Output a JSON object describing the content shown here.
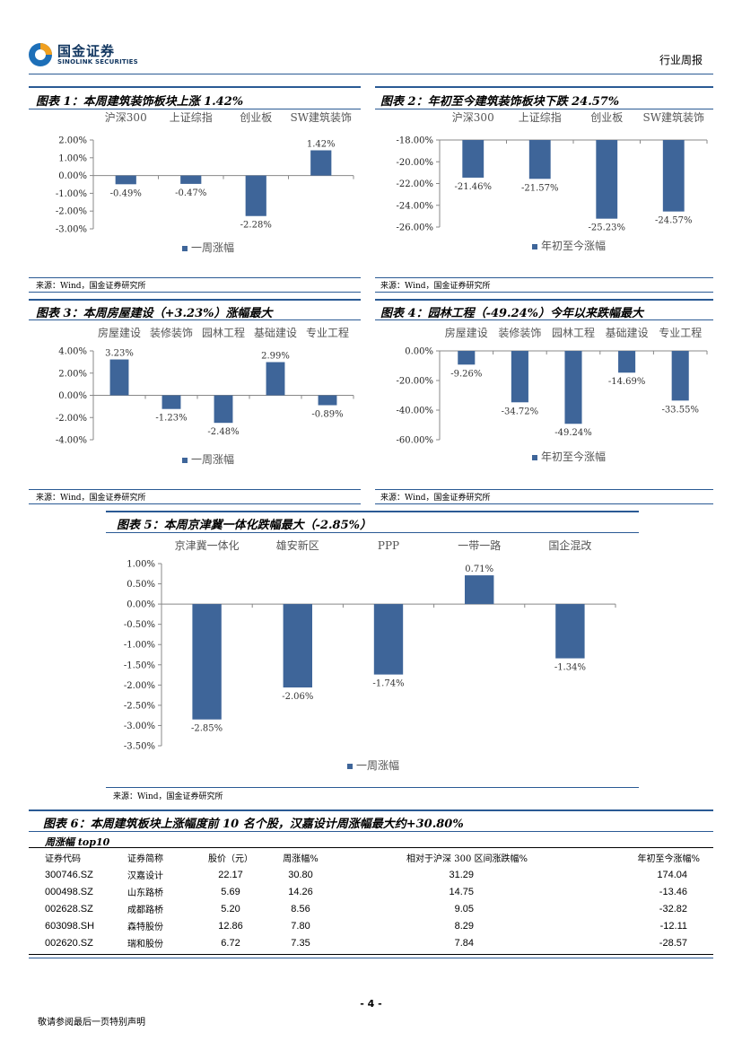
{
  "header": {
    "logo_cn": "国金证券",
    "logo_en": "SINOLINK SECURITIES",
    "doc_type": "行业周报"
  },
  "figures": [
    {
      "title": "图表 1：本周建筑装饰板块上涨 1.42%",
      "source": "来源：Wind，国金证券研究所",
      "chart_data": {
        "type": "bar",
        "categories": [
          "沪深300",
          "上证综指",
          "创业板",
          "SW建筑装饰"
        ],
        "series": [
          {
            "name": "一周涨幅",
            "values": [
              -0.49,
              -0.47,
              -2.28,
              1.42
            ]
          }
        ],
        "value_labels": [
          "-0.49%",
          "-0.47%",
          "-2.28%",
          "1.42%"
        ],
        "yticks": [
          "2.00%",
          "1.00%",
          "0.00%",
          "-1.00%",
          "-2.00%",
          "-3.00%"
        ],
        "ylim": [
          -3,
          2
        ],
        "legend": "bottom"
      }
    },
    {
      "title": "图表 2：年初至今建筑装饰板块下跌 24.57%",
      "source": "来源：Wind，国金证券研究所",
      "chart_data": {
        "type": "bar",
        "categories": [
          "沪深300",
          "上证综指",
          "创业板",
          "SW建筑装饰"
        ],
        "series": [
          {
            "name": "年初至今涨幅",
            "values": [
              -21.46,
              -21.57,
              -25.23,
              -24.57
            ]
          }
        ],
        "value_labels": [
          "-21.46%",
          "-21.57%",
          "-25.23%",
          "-24.57%"
        ],
        "yticks": [
          "-18.00%",
          "-20.00%",
          "-22.00%",
          "-24.00%",
          "-26.00%"
        ],
        "ylim": [
          -26,
          -18
        ],
        "legend": "bottom"
      }
    },
    {
      "title": "图表 3：本周房屋建设（+3.23%）涨幅最大",
      "source": "来源：Wind，国金证券研究所",
      "chart_data": {
        "type": "bar",
        "categories": [
          "房屋建设",
          "装修装饰",
          "园林工程",
          "基础建设",
          "专业工程"
        ],
        "series": [
          {
            "name": "一周涨幅",
            "values": [
              3.23,
              -1.23,
              -2.48,
              2.99,
              -0.89
            ]
          }
        ],
        "value_labels": [
          "3.23%",
          "-1.23%",
          "-2.48%",
          "2.99%",
          "-0.89%"
        ],
        "yticks": [
          "4.00%",
          "2.00%",
          "0.00%",
          "-2.00%",
          "-4.00%"
        ],
        "ylim": [
          -4,
          4
        ],
        "legend": "bottom"
      }
    },
    {
      "title": "图表 4：园林工程（-49.24%）今年以来跌幅最大",
      "source": "来源：Wind，国金证券研究所",
      "chart_data": {
        "type": "bar",
        "categories": [
          "房屋建设",
          "装修装饰",
          "园林工程",
          "基础建设",
          "专业工程"
        ],
        "series": [
          {
            "name": "年初至今涨幅",
            "values": [
              -9.26,
              -34.72,
              -49.24,
              -14.69,
              -33.55
            ]
          }
        ],
        "value_labels": [
          "-9.26%",
          "-34.72%",
          "-49.24%",
          "-14.69%",
          "-33.55%"
        ],
        "yticks": [
          "0.00%",
          "-20.00%",
          "-40.00%",
          "-60.00%"
        ],
        "ylim": [
          -60,
          0
        ],
        "legend": "bottom"
      }
    },
    {
      "title": "图表 5：本周京津冀一体化跌幅最大（-2.85%）",
      "source": "来源：Wind，国金证券研究所",
      "chart_data": {
        "type": "bar",
        "categories": [
          "京津冀一体化",
          "雄安新区",
          "PPP",
          "一带一路",
          "国企混改"
        ],
        "series": [
          {
            "name": "一周涨幅",
            "values": [
              -2.85,
              -2.06,
              -1.74,
              0.71,
              -1.34
            ]
          }
        ],
        "value_labels": [
          "-2.85%",
          "-2.06%",
          "-1.74%",
          "0.71%",
          "-1.34%"
        ],
        "yticks": [
          "1.00%",
          "0.50%",
          "0.00%",
          "-0.50%",
          "-1.00%",
          "-1.50%",
          "-2.00%",
          "-2.50%",
          "-3.00%",
          "-3.50%"
        ],
        "ylim": [
          -3.5,
          1
        ],
        "legend": "bottom"
      }
    }
  ],
  "table6": {
    "title": "图表 6：本周建筑板块上涨幅度前 10 名个股，汉嘉设计周涨幅最大约+30.80%",
    "subtitle": "周涨幅 top10",
    "columns": [
      "证券代码",
      "证券简称",
      "股价（元）",
      "周涨幅%",
      "相对于沪深 300 区间涨跌幅%",
      "年初至今涨幅%"
    ],
    "rows": [
      [
        "300746.SZ",
        "汉嘉设计",
        "22.17",
        "30.80",
        "31.29",
        "174.04"
      ],
      [
        "000498.SZ",
        "山东路桥",
        "5.69",
        "14.26",
        "14.75",
        "-13.46"
      ],
      [
        "002628.SZ",
        "成都路桥",
        "5.20",
        "8.56",
        "9.05",
        "-32.82"
      ],
      [
        "603098.SH",
        "森特股份",
        "12.86",
        "7.80",
        "8.29",
        "-12.11"
      ],
      [
        "002620.SZ",
        "瑞和股份",
        "6.72",
        "7.35",
        "7.84",
        "-28.57"
      ]
    ]
  },
  "footer": {
    "page_number": "- 4 -",
    "note": "敬请参阅最后一页特别声明"
  },
  "colors": {
    "bar": "#3e6599",
    "rule": "#2a5a94",
    "logo_blue": "#1d6fb8",
    "logo_orange": "#f0a020"
  }
}
